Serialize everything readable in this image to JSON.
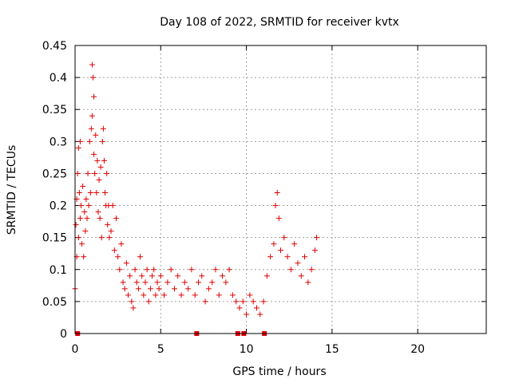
{
  "chart_data": {
    "type": "scatter",
    "title": "Day 108 of 2022, SRMTID for receiver kvtx",
    "xlabel": "GPS time / hours",
    "ylabel": "SRMTID / TECUs",
    "xlim": [
      0,
      24
    ],
    "ylim": [
      0,
      0.45
    ],
    "xticks": [
      "0",
      "5",
      "10",
      "15",
      "20"
    ],
    "yticks": [
      "0",
      "0.05",
      "0.1",
      "0.15",
      "0.2",
      "0.25",
      "0.3",
      "0.35",
      "0.4",
      "0.45"
    ],
    "grid": true,
    "legend": "none",
    "marker": "plus",
    "color": "#e00000",
    "series": [
      {
        "x": [
          0.0,
          0.05,
          0.1,
          0.1,
          0.15,
          0.2,
          0.2,
          0.25,
          0.3,
          0.3,
          0.35,
          0.4,
          0.45,
          0.5,
          0.55,
          0.6,
          0.65,
          0.7,
          0.75,
          0.8,
          0.85,
          0.9,
          0.95,
          1.0,
          1.0,
          1.05,
          1.1,
          1.1,
          1.15,
          1.2,
          1.25,
          1.3,
          1.35,
          1.4,
          1.45,
          1.5,
          1.55,
          1.6,
          1.65,
          1.7,
          1.75,
          1.8,
          1.85,
          1.9,
          1.95,
          2.0,
          2.1,
          2.2,
          2.3,
          2.4,
          2.5,
          2.6,
          2.7,
          2.8,
          2.9,
          3.0,
          3.1,
          3.2,
          3.3,
          3.4,
          3.5,
          3.6,
          3.7,
          3.8,
          3.9,
          4.0,
          4.1,
          4.2,
          4.3,
          4.4,
          4.5,
          4.6,
          4.7,
          4.8,
          4.9,
          5.0,
          5.2,
          5.4,
          5.6,
          5.8,
          6.0,
          6.2,
          6.4,
          6.6,
          6.8,
          7.0,
          7.2,
          7.4,
          7.6,
          7.8,
          8.0,
          8.2,
          8.4,
          8.6,
          8.8,
          9.0,
          9.2,
          9.4,
          9.6,
          9.8,
          10.0,
          10.2,
          10.4,
          10.6,
          10.8,
          11.0,
          11.2,
          11.4,
          11.6,
          11.7,
          11.8,
          11.9,
          12.0,
          12.2,
          12.4,
          12.6,
          12.8,
          13.0,
          13.2,
          13.4,
          13.6,
          13.8,
          14.0,
          14.1
        ],
        "y": [
          0.07,
          0.17,
          0.21,
          0.12,
          0.25,
          0.29,
          0.15,
          0.22,
          0.3,
          0.18,
          0.2,
          0.14,
          0.23,
          0.12,
          0.19,
          0.16,
          0.21,
          0.18,
          0.25,
          0.2,
          0.3,
          0.22,
          0.32,
          0.34,
          0.42,
          0.4,
          0.37,
          0.28,
          0.25,
          0.31,
          0.22,
          0.27,
          0.19,
          0.24,
          0.18,
          0.26,
          0.15,
          0.3,
          0.32,
          0.27,
          0.22,
          0.2,
          0.25,
          0.17,
          0.2,
          0.15,
          0.16,
          0.2,
          0.13,
          0.18,
          0.12,
          0.1,
          0.14,
          0.08,
          0.07,
          0.11,
          0.06,
          0.09,
          0.05,
          0.04,
          0.1,
          0.08,
          0.07,
          0.12,
          0.09,
          0.06,
          0.08,
          0.1,
          0.05,
          0.07,
          0.09,
          0.1,
          0.06,
          0.08,
          0.07,
          0.09,
          0.06,
          0.08,
          0.1,
          0.07,
          0.09,
          0.06,
          0.08,
          0.07,
          0.1,
          0.06,
          0.08,
          0.09,
          0.05,
          0.07,
          0.08,
          0.1,
          0.06,
          0.09,
          0.08,
          0.1,
          0.06,
          0.05,
          0.04,
          0.05,
          0.03,
          0.06,
          0.05,
          0.04,
          0.03,
          0.05,
          0.09,
          0.12,
          0.14,
          0.2,
          0.22,
          0.18,
          0.13,
          0.15,
          0.12,
          0.1,
          0.14,
          0.11,
          0.09,
          0.12,
          0.08,
          0.1,
          0.13,
          0.15
        ]
      },
      {
        "name": "",
        "x": [
          0.15,
          7.1,
          9.5,
          9.85,
          11.05
        ],
        "y": [
          0,
          0,
          0,
          0,
          0
        ]
      }
    ]
  }
}
